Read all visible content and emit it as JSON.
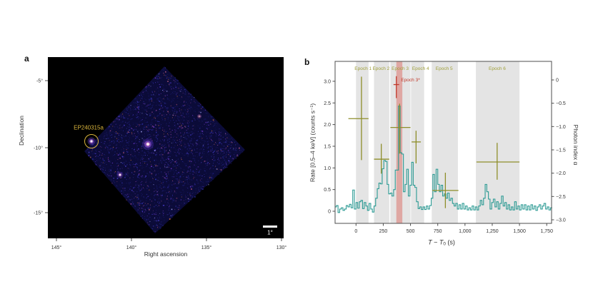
{
  "figure": {
    "panel_a_label": "a",
    "panel_b_label": "b"
  },
  "panel_a": {
    "xlabel": "Right ascension",
    "ylabel": "Declination",
    "xticks": [
      "145°",
      "140°",
      "135°",
      "130°"
    ],
    "yticks": [
      "-5°",
      "-10°",
      "-15°"
    ],
    "source_label": "EP240315a",
    "scalebar_label": "1°",
    "colors": {
      "source_marker_yellow": "#d9b43c",
      "background": "#000000",
      "field_blue": "#12124e"
    }
  },
  "chart_data": [
    {
      "type": "line",
      "xlabel": "T − T0 (s)",
      "xlabel_parts": {
        "t1": "T",
        "minus": " − ",
        "t2": "T",
        "sub": "0",
        "unit": " (s)"
      },
      "ylabel_left": "Rate [0.5–4 keV] (counts s⁻¹)",
      "ylabel_right": "Photon index α",
      "xlim": [
        -195,
        1800
      ],
      "ylim_left": [
        -0.28,
        3.46
      ],
      "ylim_right": [
        -3.08,
        0.4
      ],
      "xticks": {
        "values": [
          0,
          250,
          500,
          750,
          1000,
          1250,
          1500,
          1750
        ],
        "labels": [
          "0",
          "250",
          "500",
          "750",
          "1,000",
          "1,250",
          "1,500",
          "1,750"
        ]
      },
      "yticks_left": {
        "values": [
          0,
          0.5,
          1,
          1.5,
          2,
          2.5,
          3
        ],
        "labels": [
          "0",
          "0.5",
          "1.0",
          "1.5",
          "2.0",
          "2.5",
          "3.0"
        ]
      },
      "yticks_right": {
        "values": [
          0,
          -0.5,
          -1,
          -1.5,
          -2,
          -2.5,
          -3
        ],
        "labels": [
          "0",
          "−0.5",
          "−1.0",
          "−1.5",
          "−2.0",
          "−2.5",
          "−3.0"
        ]
      },
      "epochs": [
        {
          "label": "Epoch 1",
          "t_range": [
            0,
            115
          ],
          "label_t": 65
        },
        {
          "label": "Epoch 2",
          "t_range": [
            165,
            305
          ],
          "label_t": 230
        },
        {
          "label": "Epoch 3",
          "t_range": [
            315,
            500
          ],
          "label_t": 405
        },
        {
          "label": "Epoch 4",
          "t_range": [
            505,
            625
          ],
          "label_t": 593
        },
        {
          "label": "Epoch 5",
          "t_range": [
            695,
            935
          ],
          "label_t": 809
        },
        {
          "label": "Epoch 6",
          "t_range": [
            1100,
            1500
          ],
          "label_t": 1296
        }
      ],
      "epoch3star": {
        "label": "Epoch 3*",
        "band_t": [
          370,
          425
        ],
        "label_t": 500,
        "label_alpha": -0.03
      },
      "photon_index_points": [
        {
          "epoch": "Epoch 1",
          "t": 50,
          "t_range": [
            -70,
            115
          ],
          "alpha": -0.83,
          "alpha_range": [
            -1.72,
            0.07
          ],
          "color": "olive"
        },
        {
          "epoch": "Epoch 2",
          "t": 232,
          "t_range": [
            165,
            305
          ],
          "alpha": -1.7,
          "alpha_range": [
            -2.01,
            -1.37
          ],
          "color": "olive"
        },
        {
          "epoch": "Epoch 3",
          "t": 400,
          "t_range": [
            315,
            500
          ],
          "alpha": -1.02,
          "alpha_range": [
            -1.58,
            -0.51
          ],
          "color": "olive"
        },
        {
          "epoch": "Epoch 3*",
          "t": 370,
          "t_range": [
            344,
            396
          ],
          "alpha": -0.1,
          "alpha_range": [
            -0.39,
            0.08
          ],
          "color": "red"
        },
        {
          "epoch": "Epoch 4",
          "t": 551,
          "t_range": [
            510,
            595
          ],
          "alpha": -1.33,
          "alpha_range": [
            -1.79,
            -1.09
          ],
          "color": "olive"
        },
        {
          "epoch": "Epoch 5",
          "t": 820,
          "t_range": [
            700,
            940
          ],
          "alpha": -2.37,
          "alpha_range": [
            -2.75,
            -1.99
          ],
          "color": "olive"
        },
        {
          "epoch": "Epoch 6",
          "t": 1295,
          "t_range": [
            1105,
            1500
          ],
          "alpha": -1.76,
          "alpha_range": [
            -2.14,
            -1.35
          ],
          "color": "olive"
        }
      ],
      "lightcurve": {
        "bin_start": -195,
        "bin_width": 15,
        "rates": [
          0.1,
          0.13,
          -0.03,
          0.05,
          0.08,
          0.02,
          0.05,
          0.13,
          0.1,
          0.16,
          0.08,
          0.49,
          0.05,
          0.2,
          0.07,
          0.22,
          0.25,
          0.06,
          0.2,
          0.12,
          0.02,
          0.18,
          0.05,
          -0.02,
          0.12,
          0.3,
          0.52,
          0.65,
          0.63,
          0.98,
          1.17,
          1.15,
          0.62,
          0.4,
          0.42,
          0.35,
          0.5,
          0.95,
          0.95,
          2.43,
          1.35,
          1.32,
          0.45,
          0.62,
          0.97,
          0.35,
          0.6,
          1.13,
          0.6,
          0.55,
          0.22,
          0.06,
          0.1,
          0.04,
          0.1,
          0.04,
          0.12,
          0.05,
          0.13,
          0.3,
          0.85,
          0.45,
          0.97,
          0.62,
          0.45,
          0.6,
          0.35,
          0.4,
          0.3,
          0.42,
          0.25,
          0.3,
          0.18,
          0.12,
          0.18,
          0.05,
          0.15,
          0.05,
          0.18,
          0.05,
          0.12,
          0.03,
          0.08,
          0.03,
          0.12,
          0.03,
          0.1,
          0.03,
          0.12,
          0.25,
          0.15,
          0.3,
          0.62,
          0.45,
          0.28,
          0.05,
          0.2,
          0.28,
          0.1,
          0.22,
          0.05,
          0.18,
          0.35,
          0.12,
          0.2,
          0.05,
          0.15,
          0.03,
          0.1,
          0.03,
          0.22,
          0.05,
          0.12,
          0.03,
          0.15,
          0.05,
          0.15,
          0.03,
          0.12,
          0.03,
          0.15,
          0.05,
          0.12,
          0.02,
          0.1,
          0.15,
          0.05,
          0.12,
          0.18,
          0.05,
          0.1,
          0.03,
          0.08
        ]
      },
      "colors": {
        "line": "#2b9a93",
        "cross_olive": "#8e8e2a",
        "cross_red": "#c0392b",
        "band_gray": "#e4e4e4",
        "band_red": "#d96a62",
        "epoch_label": "#a0a03c",
        "epoch3star_label": "#c0392b"
      },
      "legend": "none",
      "grid": "off"
    }
  ]
}
